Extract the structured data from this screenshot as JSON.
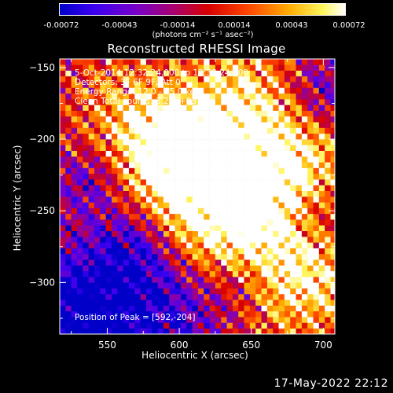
{
  "colorbar": {
    "tick_labels": [
      "-0.00072",
      "-0.00043",
      "-0.00014",
      "0.00014",
      "0.00043",
      "0.00072"
    ],
    "units": "(photons cm⁻² s⁻¹ asec⁻²)",
    "range": [
      -0.00072,
      0.00072
    ],
    "colormap": "rainbow-dark-to-white (blue, purple, red, orange, yellow, white)"
  },
  "chart_data": {
    "type": "heatmap",
    "title": "Reconstructed RHESSI Image",
    "xlabel": "Heliocentric X (arcsec)",
    "ylabel": "Heliocentric Y (arcsec)",
    "xlim": [
      517,
      708
    ],
    "ylim": [
      -336,
      -144
    ],
    "x_ticks": [
      550,
      600,
      650,
      700
    ],
    "y_ticks": [
      -150,
      -200,
      -250,
      -300
    ],
    "x_tick_labels": [
      "550",
      "600",
      "650",
      "700"
    ],
    "y_tick_labels": [
      "−150",
      "−200",
      "−250",
      "−300"
    ],
    "annotations": [
      "5-Oct-2014 12:32:24.000 to 12:38:24.000",
      "Detectors: 3F 6F 9F, Att 0",
      "Energy Range: 12.0 - 25.0 keV",
      "Clean     Total counts: 3.22E+03"
    ],
    "peak_label": "Position of Peak = [592,-204]",
    "peak_position": [
      592,
      -204
    ]
  },
  "timestamp": "17-May-2022 22:12"
}
